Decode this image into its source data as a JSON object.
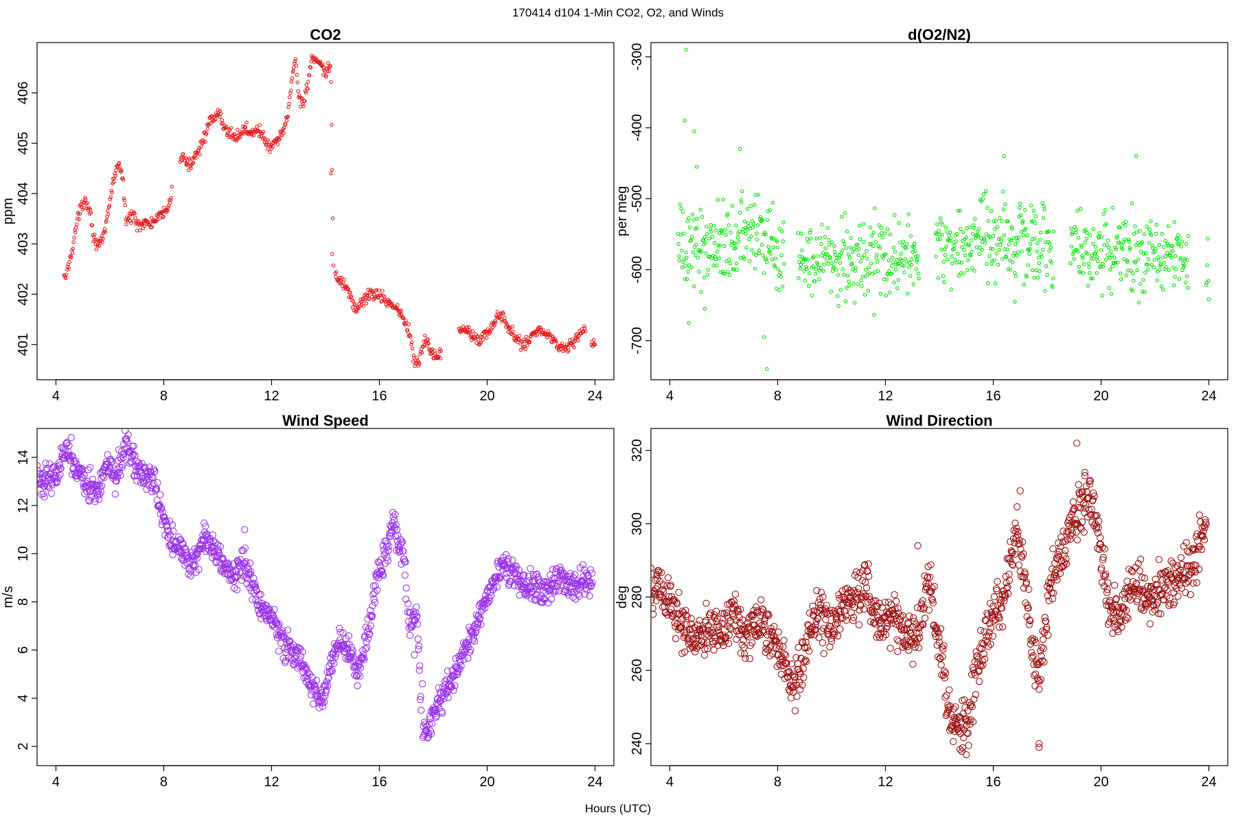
{
  "figure": {
    "suptitle": "170414   d104   1-Min CO2, O2, and Winds",
    "xlabel": "Hours (UTC)"
  },
  "chart_data": [
    {
      "id": "co2",
      "type": "scatter",
      "title": "CO2",
      "ylabel": "ppm",
      "color": "#e41a1c",
      "marker_radius": 2.2,
      "xlim": [
        3.3,
        24.7
      ],
      "ylim": [
        400.3,
        407.0
      ],
      "xticks": [
        4,
        8,
        12,
        16,
        20,
        24
      ],
      "yticks": [
        401,
        402,
        403,
        404,
        405,
        406
      ],
      "anchors": [
        [
          4.3,
          402.3
        ],
        [
          4.4,
          402.4
        ],
        [
          4.6,
          402.9
        ],
        [
          4.8,
          403.5
        ],
        [
          5.0,
          403.8
        ],
        [
          5.1,
          403.9
        ],
        [
          5.3,
          403.6
        ],
        [
          5.4,
          403.1
        ],
        [
          5.6,
          403.0
        ],
        [
          5.7,
          403.0
        ],
        [
          5.8,
          403.2
        ],
        [
          6.0,
          403.8
        ],
        [
          6.1,
          404.2
        ],
        [
          6.3,
          404.6
        ],
        [
          6.45,
          404.4
        ],
        [
          6.6,
          403.5
        ],
        [
          6.75,
          403.5
        ],
        [
          6.9,
          403.6
        ],
        [
          7.0,
          403.4
        ],
        [
          7.2,
          403.4
        ],
        [
          7.5,
          403.4
        ],
        [
          7.8,
          403.5
        ],
        [
          8.0,
          403.6
        ],
        [
          8.2,
          403.8
        ],
        [
          8.7,
          404.8
        ],
        [
          8.9,
          404.5
        ],
        [
          9.2,
          404.8
        ],
        [
          9.4,
          405.0
        ],
        [
          9.7,
          405.4
        ],
        [
          9.9,
          405.5
        ],
        [
          10.1,
          405.6
        ],
        [
          10.2,
          405.3
        ],
        [
          10.5,
          405.2
        ],
        [
          10.7,
          405.1
        ],
        [
          11.0,
          405.3
        ],
        [
          11.2,
          405.2
        ],
        [
          11.5,
          405.3
        ],
        [
          11.8,
          405.0
        ],
        [
          12.0,
          404.9
        ],
        [
          12.3,
          405.1
        ],
        [
          12.6,
          405.5
        ],
        [
          12.8,
          406.5
        ],
        [
          12.9,
          406.7
        ],
        [
          13.0,
          405.9
        ],
        [
          13.2,
          405.8
        ],
        [
          13.4,
          406.4
        ],
        [
          13.5,
          406.7
        ],
        [
          14.0,
          406.4
        ],
        [
          14.2,
          406.5
        ],
        [
          14.3,
          402.4
        ],
        [
          14.5,
          402.3
        ],
        [
          14.7,
          402.2
        ],
        [
          14.9,
          402.0
        ],
        [
          15.1,
          401.7
        ],
        [
          15.3,
          401.8
        ],
        [
          15.6,
          402.0
        ],
        [
          15.9,
          402.0
        ],
        [
          16.2,
          401.9
        ],
        [
          16.5,
          401.8
        ],
        [
          16.8,
          401.6
        ],
        [
          17.0,
          401.4
        ],
        [
          17.2,
          401.0
        ],
        [
          17.3,
          400.6
        ],
        [
          17.5,
          400.7
        ],
        [
          17.7,
          401.1
        ],
        [
          17.9,
          400.9
        ],
        [
          18.0,
          400.8
        ],
        [
          18.2,
          400.8
        ],
        [
          19.0,
          401.3
        ],
        [
          19.3,
          401.3
        ],
        [
          19.7,
          401.1
        ],
        [
          20.0,
          401.2
        ],
        [
          20.3,
          401.5
        ],
        [
          20.5,
          401.6
        ],
        [
          20.8,
          401.3
        ],
        [
          21.1,
          401.1
        ],
        [
          21.4,
          401.0
        ],
        [
          21.7,
          401.2
        ],
        [
          21.9,
          401.3
        ],
        [
          22.2,
          401.2
        ],
        [
          22.5,
          401.1
        ],
        [
          22.8,
          400.9
        ],
        [
          23.1,
          401.0
        ],
        [
          23.4,
          401.2
        ],
        [
          23.6,
          401.3
        ],
        [
          23.9,
          401.0
        ],
        [
          24.0,
          401.0
        ]
      ],
      "gaps": [
        [
          8.3,
          8.6
        ],
        [
          14.3,
          14.35
        ],
        [
          18.3,
          18.95
        ],
        [
          23.65,
          23.85
        ]
      ],
      "noise": 0.06,
      "density": 45,
      "extra_points": [
        [
          14.2,
          404.4
        ],
        [
          14.25,
          402.8
        ],
        [
          17.1,
          401.4
        ],
        [
          17.8,
          401.1
        ]
      ]
    },
    {
      "id": "o2",
      "type": "scatter",
      "title": "d(O2/N2)",
      "ylabel": "per meg",
      "color": "#00e000",
      "marker_radius": 2.2,
      "xlim": [
        3.3,
        24.7
      ],
      "ylim": [
        -755,
        -280
      ],
      "xticks": [
        4,
        8,
        12,
        16,
        20,
        24
      ],
      "yticks": [
        -300,
        -400,
        -500,
        -600,
        -700
      ],
      "anchors": [
        [
          4.3,
          -570
        ],
        [
          6.0,
          -560
        ],
        [
          7.0,
          -545
        ],
        [
          8.0,
          -575
        ],
        [
          9.0,
          -575
        ],
        [
          11.0,
          -585
        ],
        [
          13.0,
          -585
        ],
        [
          14.0,
          -565
        ],
        [
          16.0,
          -560
        ],
        [
          18.0,
          -565
        ],
        [
          19.0,
          -570
        ],
        [
          21.0,
          -575
        ],
        [
          23.2,
          -580
        ],
        [
          24.0,
          -585
        ]
      ],
      "gaps": [
        [
          8.25,
          8.75
        ],
        [
          13.25,
          13.85
        ],
        [
          18.25,
          18.85
        ],
        [
          23.25,
          23.9
        ]
      ],
      "noise": 28,
      "density": 50,
      "extra_points": [
        [
          4.6,
          -290
        ],
        [
          4.55,
          -390
        ],
        [
          4.9,
          -405
        ],
        [
          5.0,
          -455
        ],
        [
          6.6,
          -430
        ],
        [
          7.5,
          -695
        ],
        [
          7.6,
          -740
        ],
        [
          16.4,
          -440
        ],
        [
          21.3,
          -440
        ],
        [
          16.8,
          -645
        ],
        [
          5.3,
          -655
        ],
        [
          4.7,
          -675
        ]
      ]
    },
    {
      "id": "wspd",
      "type": "scatter",
      "title": "Wind Speed",
      "ylabel": "m/s",
      "color": "#9932e6",
      "marker_radius": 4.6,
      "xlim": [
        3.3,
        24.7
      ],
      "ylim": [
        1.2,
        15.2
      ],
      "xticks": [
        4,
        8,
        12,
        16,
        20,
        24
      ],
      "yticks": [
        2,
        4,
        6,
        8,
        10,
        12,
        14
      ],
      "anchors": [
        [
          3.3,
          13.0
        ],
        [
          4.0,
          13.3
        ],
        [
          4.4,
          14.5
        ],
        [
          4.8,
          13.5
        ],
        [
          5.3,
          12.8
        ],
        [
          5.6,
          12.5
        ],
        [
          5.9,
          13.8
        ],
        [
          6.2,
          13.2
        ],
        [
          6.6,
          14.5
        ],
        [
          7.0,
          13.5
        ],
        [
          7.6,
          13.0
        ],
        [
          8.0,
          11.5
        ],
        [
          8.3,
          10.5
        ],
        [
          8.7,
          10.0
        ],
        [
          9.0,
          9.5
        ],
        [
          9.3,
          10.0
        ],
        [
          9.5,
          10.8
        ],
        [
          9.8,
          10.3
        ],
        [
          10.2,
          9.7
        ],
        [
          10.6,
          9.0
        ],
        [
          11.0,
          9.7
        ],
        [
          11.3,
          8.5
        ],
        [
          11.6,
          7.8
        ],
        [
          12.0,
          7.5
        ],
        [
          12.3,
          6.5
        ],
        [
          12.7,
          6.0
        ],
        [
          13.1,
          5.5
        ],
        [
          13.5,
          4.5
        ],
        [
          13.9,
          3.8
        ],
        [
          14.2,
          5.5
        ],
        [
          14.5,
          6.5
        ],
        [
          14.9,
          6.0
        ],
        [
          15.2,
          5.0
        ],
        [
          15.6,
          7.0
        ],
        [
          15.9,
          9.0
        ],
        [
          16.3,
          10.0
        ],
        [
          16.5,
          11.5
        ],
        [
          16.7,
          10.5
        ],
        [
          16.9,
          10.0
        ],
        [
          17.1,
          7.0
        ],
        [
          17.4,
          7.5
        ],
        [
          17.6,
          2.2
        ],
        [
          18.0,
          3.2
        ],
        [
          18.3,
          4.0
        ],
        [
          18.6,
          4.5
        ],
        [
          19.0,
          5.5
        ],
        [
          19.4,
          6.5
        ],
        [
          19.8,
          7.8
        ],
        [
          20.1,
          8.5
        ],
        [
          20.5,
          9.5
        ],
        [
          20.9,
          9.2
        ],
        [
          21.3,
          8.6
        ],
        [
          21.7,
          8.8
        ],
        [
          22.1,
          8.3
        ],
        [
          22.6,
          9.0
        ],
        [
          23.0,
          8.7
        ],
        [
          23.5,
          8.8
        ],
        [
          23.9,
          9.0
        ]
      ],
      "gaps": [
        [
          17.0,
          17.05
        ],
        [
          17.55,
          17.6
        ]
      ],
      "noise": 0.3,
      "density": 60,
      "extra_points": [
        [
          17.6,
          4.6
        ],
        [
          17.3,
          5.8
        ],
        [
          11.0,
          11.0
        ]
      ]
    },
    {
      "id": "wdir",
      "type": "scatter",
      "title": "Wind Direction",
      "ylabel": "deg",
      "color": "#9b0f0f",
      "marker_radius": 4.6,
      "xlim": [
        3.3,
        24.7
      ],
      "ylim": [
        234,
        326
      ],
      "xticks": [
        4,
        8,
        12,
        16,
        20,
        24
      ],
      "yticks": [
        240,
        260,
        280,
        300,
        320
      ],
      "anchors": [
        [
          3.3,
          282
        ],
        [
          3.8,
          282
        ],
        [
          4.2,
          276
        ],
        [
          4.6,
          270
        ],
        [
          5.0,
          269
        ],
        [
          5.5,
          271
        ],
        [
          6.0,
          270
        ],
        [
          6.3,
          276
        ],
        [
          6.8,
          269
        ],
        [
          7.3,
          274
        ],
        [
          7.8,
          269
        ],
        [
          8.2,
          264
        ],
        [
          8.6,
          256
        ],
        [
          8.9,
          262
        ],
        [
          9.2,
          271
        ],
        [
          9.5,
          276
        ],
        [
          9.9,
          271
        ],
        [
          10.4,
          277
        ],
        [
          10.9,
          280
        ],
        [
          11.3,
          284
        ],
        [
          11.7,
          274
        ],
        [
          12.2,
          274
        ],
        [
          12.7,
          270
        ],
        [
          13.2,
          270
        ],
        [
          13.6,
          285
        ],
        [
          13.9,
          272
        ],
        [
          14.3,
          250
        ],
        [
          14.7,
          244
        ],
        [
          15.1,
          247
        ],
        [
          15.4,
          262
        ],
        [
          15.8,
          270
        ],
        [
          16.1,
          276
        ],
        [
          16.5,
          283
        ],
        [
          16.8,
          300
        ],
        [
          17.2,
          285
        ],
        [
          17.4,
          268
        ],
        [
          17.7,
          258
        ],
        [
          18.1,
          282
        ],
        [
          18.5,
          290
        ],
        [
          18.9,
          300
        ],
        [
          19.3,
          305
        ],
        [
          19.7,
          305
        ],
        [
          20.0,
          292
        ],
        [
          20.3,
          278
        ],
        [
          20.7,
          275
        ],
        [
          21.1,
          283
        ],
        [
          21.5,
          283
        ],
        [
          21.9,
          280
        ],
        [
          22.4,
          284
        ],
        [
          22.8,
          286
        ],
        [
          23.3,
          288
        ],
        [
          23.9,
          299
        ]
      ],
      "gaps": [],
      "noise": 3.5,
      "density": 60,
      "extra_points": [
        [
          19.1,
          322
        ],
        [
          17.7,
          239
        ],
        [
          17.7,
          240
        ],
        [
          15.0,
          237
        ],
        [
          13.2,
          294
        ],
        [
          17.0,
          309
        ],
        [
          19.4,
          314
        ]
      ]
    }
  ]
}
